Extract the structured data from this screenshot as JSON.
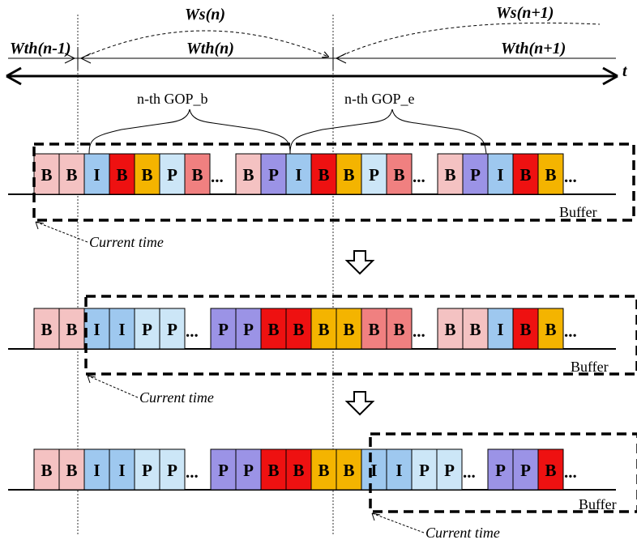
{
  "colors": {
    "light_pink": "#f4c2c2",
    "red": "#ee1111",
    "light_blue": "#9ec8ef",
    "pale_blue": "#cce6f7",
    "orange": "#f4b400",
    "salmon": "#f08080",
    "lavender": "#9b93e6",
    "line": "#000000"
  },
  "axis": {
    "time_symbol": "t"
  },
  "windows": {
    "ws_n": "Ws(n)",
    "ws_n_plus_1": "Ws(n+1)",
    "wth_n_minus_1": "Wth(n-1)",
    "wth_n": "Wth(n)",
    "wth_n_plus_1": "Wth(n+1)"
  },
  "gop_labels": {
    "gop_b": "n-th GOP_b",
    "gop_e": "n-th GOP_e"
  },
  "rows": [
    {
      "buffer_label": "Buffer",
      "current_time_label": "Current time",
      "frames": [
        {
          "t": "B",
          "c": "light_pink"
        },
        {
          "t": "B",
          "c": "light_pink"
        },
        {
          "t": "I",
          "c": "light_blue"
        },
        {
          "t": "B",
          "c": "red"
        },
        {
          "t": "B",
          "c": "orange"
        },
        {
          "t": "P",
          "c": "pale_blue"
        },
        {
          "t": "B",
          "c": "salmon"
        },
        {
          "t": "...",
          "c": null
        },
        {
          "t": "B",
          "c": "light_pink"
        },
        {
          "t": "P",
          "c": "lavender"
        },
        {
          "t": "I",
          "c": "light_blue"
        },
        {
          "t": "B",
          "c": "red"
        },
        {
          "t": "B",
          "c": "orange"
        },
        {
          "t": "P",
          "c": "pale_blue"
        },
        {
          "t": "B",
          "c": "salmon"
        },
        {
          "t": "...",
          "c": null
        },
        {
          "t": "B",
          "c": "light_pink"
        },
        {
          "t": "P",
          "c": "lavender"
        },
        {
          "t": "I",
          "c": "light_blue"
        },
        {
          "t": "B",
          "c": "red"
        },
        {
          "t": "B",
          "c": "orange"
        },
        {
          "t": "...",
          "c": null
        }
      ]
    },
    {
      "buffer_label": "Buffer",
      "current_time_label": "Current time",
      "frames": [
        {
          "t": "B",
          "c": "light_pink"
        },
        {
          "t": "B",
          "c": "light_pink"
        },
        {
          "t": "I",
          "c": "light_blue"
        },
        {
          "t": "I",
          "c": "light_blue"
        },
        {
          "t": "P",
          "c": "pale_blue"
        },
        {
          "t": "P",
          "c": "pale_blue"
        },
        {
          "t": "...",
          "c": null
        },
        {
          "t": "P",
          "c": "lavender"
        },
        {
          "t": "P",
          "c": "lavender"
        },
        {
          "t": "B",
          "c": "red"
        },
        {
          "t": "B",
          "c": "red"
        },
        {
          "t": "B",
          "c": "orange"
        },
        {
          "t": "B",
          "c": "orange"
        },
        {
          "t": "B",
          "c": "salmon"
        },
        {
          "t": "B",
          "c": "salmon"
        },
        {
          "t": "...",
          "c": null
        },
        {
          "t": "B",
          "c": "light_pink"
        },
        {
          "t": "B",
          "c": "light_pink"
        },
        {
          "t": "I",
          "c": "light_blue"
        },
        {
          "t": "B",
          "c": "red"
        },
        {
          "t": "B",
          "c": "orange"
        },
        {
          "t": "...",
          "c": null
        }
      ]
    },
    {
      "buffer_label": "Buffer",
      "current_time_label": "Current time",
      "frames": [
        {
          "t": "B",
          "c": "light_pink"
        },
        {
          "t": "B",
          "c": "light_pink"
        },
        {
          "t": "I",
          "c": "light_blue"
        },
        {
          "t": "I",
          "c": "light_blue"
        },
        {
          "t": "P",
          "c": "pale_blue"
        },
        {
          "t": "P",
          "c": "pale_blue"
        },
        {
          "t": "...",
          "c": null
        },
        {
          "t": "P",
          "c": "lavender"
        },
        {
          "t": "P",
          "c": "lavender"
        },
        {
          "t": "B",
          "c": "red"
        },
        {
          "t": "B",
          "c": "red"
        },
        {
          "t": "B",
          "c": "orange"
        },
        {
          "t": "B",
          "c": "orange"
        },
        {
          "t": "I",
          "c": "light_blue"
        },
        {
          "t": "I",
          "c": "light_blue"
        },
        {
          "t": "P",
          "c": "pale_blue"
        },
        {
          "t": "P",
          "c": "pale_blue"
        },
        {
          "t": "...",
          "c": null
        },
        {
          "t": "P",
          "c": "lavender"
        },
        {
          "t": "P",
          "c": "lavender"
        },
        {
          "t": "B",
          "c": "red"
        },
        {
          "t": "...",
          "c": null
        }
      ]
    }
  ]
}
